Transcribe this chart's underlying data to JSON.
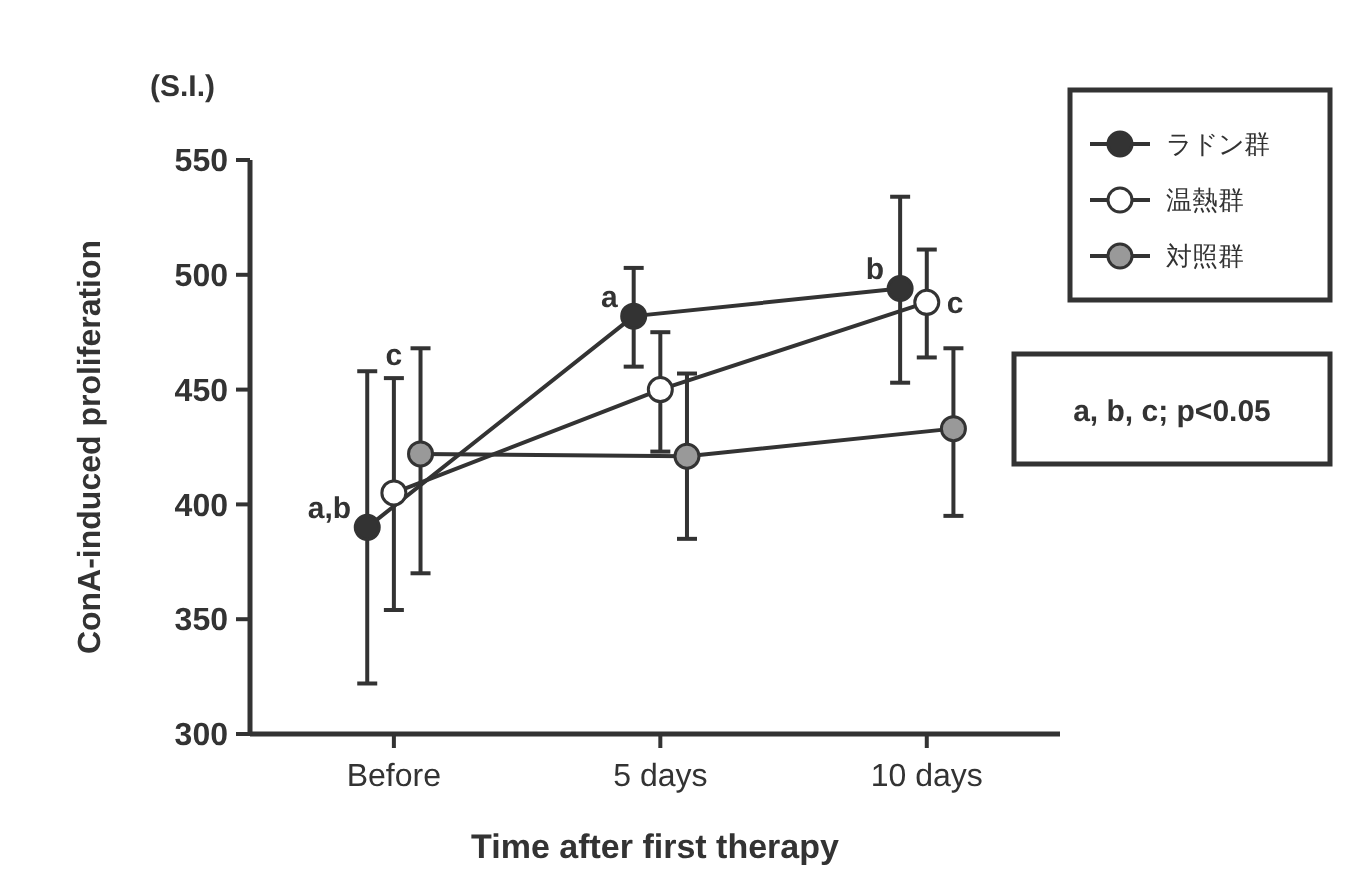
{
  "chart_data": {
    "type": "line",
    "ylabel": "ConA-induced proliferation",
    "xlabel": "Time after first therapy",
    "xlim": [
      -2.7,
      12.5
    ],
    "xticks": [
      {
        "value": 0,
        "label": "Before"
      },
      {
        "value": 5,
        "label": "5 days"
      },
      {
        "value": 10,
        "label": "10 days"
      }
    ],
    "series": [
      {
        "name": "ラドン群",
        "color": "#333333",
        "x": [
          -0.5,
          4.5,
          9.5
        ],
        "values": [
          390,
          482,
          494
        ],
        "errors": [
          [
            322,
            458
          ],
          [
            460,
            503
          ],
          [
            453,
            534
          ]
        ]
      },
      {
        "name": "温熱群",
        "color": "#ffffff",
        "x": [
          0,
          5,
          10
        ],
        "values": [
          405,
          450,
          488
        ],
        "errors": [
          [
            354,
            455
          ],
          [
            423,
            475
          ],
          [
            464,
            511
          ]
        ]
      },
      {
        "name": "対照群",
        "color": "#999999",
        "x": [
          0.5,
          5.5,
          10.5
        ],
        "values": [
          422,
          421,
          433
        ],
        "errors": [
          [
            370,
            468
          ],
          [
            385,
            457
          ],
          [
            395,
            468
          ]
        ]
      }
    ],
    "ylim": [
      300,
      550
    ],
    "yticks": [
      300,
      350,
      400,
      450,
      500,
      550
    ],
    "grid": false,
    "legend": "top right",
    "marker": "circle",
    "line_style": "solid",
    "annotations": [
      "(S.I.)",
      {
        "text": "a,b",
        "x": -0.5,
        "y": 390
      },
      {
        "text": "c",
        "x": 0,
        "y": 455
      },
      {
        "text": "a",
        "x": 4.5,
        "y": 482
      },
      {
        "text": "b",
        "x": 9.5,
        "y": 494
      },
      {
        "text": "c",
        "x": 10,
        "y": 488
      },
      "a, b, c; p<0.05"
    ]
  }
}
